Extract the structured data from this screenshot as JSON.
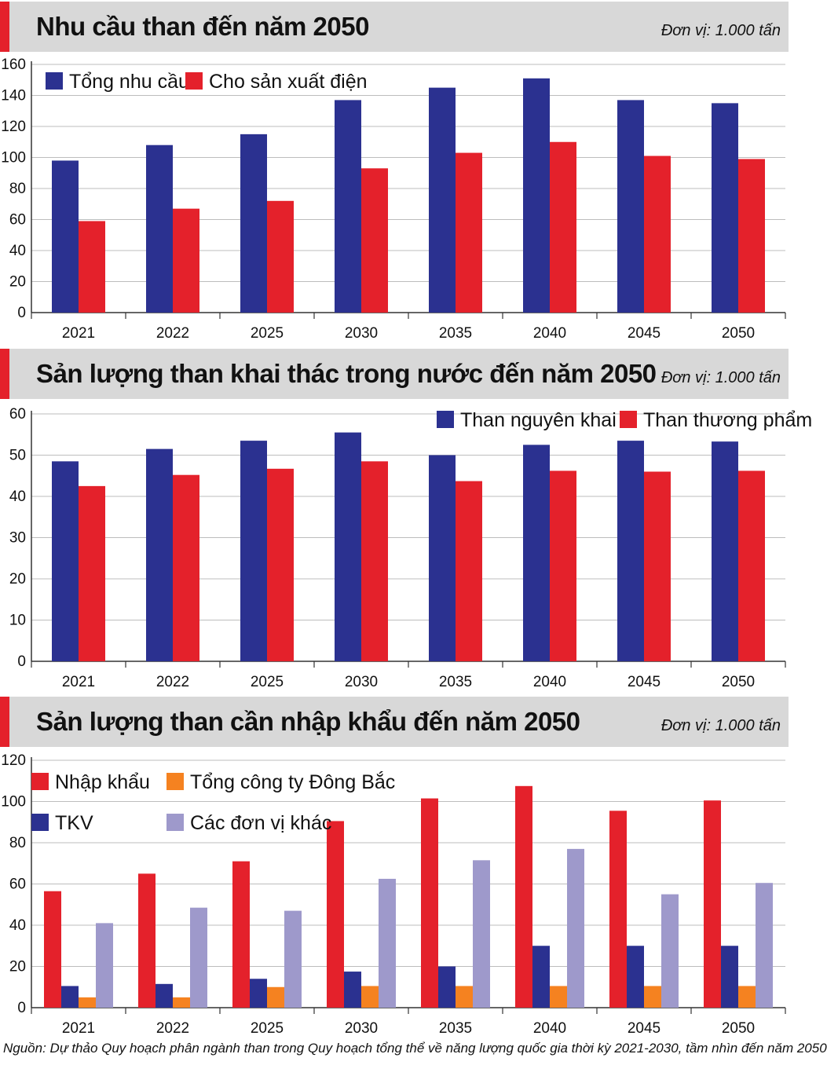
{
  "colors": {
    "blue": "#2b3190",
    "red": "#e4212b",
    "orange": "#f58220",
    "lavender": "#9e99cb",
    "accent": "#e4212b",
    "header_bg": "#d8d8d8"
  },
  "charts": [
    {
      "title": "Nhu cầu than đến năm 2050",
      "unit": "Đơn vị: 1.000 tấn"
    },
    {
      "title": "Sản lượng than khai thác trong nước đến năm 2050",
      "unit": "Đơn vị: 1.000 tấn"
    },
    {
      "title": "Sản lượng than cần nhập khẩu đến năm 2050",
      "unit": "Đơn vị: 1.000 tấn"
    }
  ],
  "source": "Nguồn: Dự thảo Quy hoạch phân ngành than trong Quy hoạch tổng thể về năng lượng quốc gia thời kỳ 2021-2030, tầm nhìn đến năm 2050",
  "chart_data": [
    {
      "type": "bar",
      "title": "Nhu cầu than đến năm 2050",
      "ylabel": "Đơn vị: 1.000 tấn",
      "categories": [
        "2021",
        "2022",
        "2025",
        "2030",
        "2035",
        "2040",
        "2045",
        "2050"
      ],
      "ylim": [
        0,
        160
      ],
      "yticks": [
        0,
        20,
        40,
        60,
        80,
        100,
        120,
        140,
        160
      ],
      "legend": "top-left",
      "series": [
        {
          "name": "Tổng nhu cầu",
          "color": "#2b3190",
          "values": [
            98,
            108,
            115,
            137,
            145,
            151,
            137,
            135
          ]
        },
        {
          "name": "Cho sản xuất điện",
          "color": "#e4212b",
          "values": [
            59,
            67,
            72,
            93,
            103,
            110,
            101,
            99
          ]
        }
      ]
    },
    {
      "type": "bar",
      "title": "Sản lượng than khai thác trong nước đến năm 2050",
      "ylabel": "Đơn vị: 1.000 tấn",
      "categories": [
        "2021",
        "2022",
        "2025",
        "2030",
        "2035",
        "2040",
        "2045",
        "2050"
      ],
      "ylim": [
        0,
        60
      ],
      "yticks": [
        0,
        10,
        20,
        30,
        40,
        50,
        60
      ],
      "legend": "top-right",
      "series": [
        {
          "name": "Than nguyên khai",
          "color": "#2b3190",
          "values": [
            48.5,
            51.5,
            53.5,
            55.5,
            50,
            52.5,
            53.5,
            53.3
          ]
        },
        {
          "name": "Than thương phẩm",
          "color": "#e4212b",
          "values": [
            42.5,
            45.2,
            46.7,
            48.5,
            43.7,
            46.2,
            46,
            46.2
          ]
        }
      ]
    },
    {
      "type": "bar",
      "title": "Sản lượng than cần nhập khẩu đến năm 2050",
      "ylabel": "Đơn vị: 1.000 tấn",
      "categories": [
        "2021",
        "2022",
        "2025",
        "2030",
        "2035",
        "2040",
        "2045",
        "2050"
      ],
      "ylim": [
        0,
        120
      ],
      "yticks": [
        0,
        20,
        40,
        60,
        80,
        100,
        120
      ],
      "legend": "top-left",
      "series": [
        {
          "name": "Nhập khẩu",
          "color": "#e4212b",
          "values": [
            56.5,
            65,
            71,
            90.5,
            101.5,
            107.5,
            95.5,
            100.5
          ]
        },
        {
          "name": "TKV",
          "color": "#2b3190",
          "values": [
            10.5,
            11.5,
            14,
            17.5,
            20,
            30,
            30,
            30
          ]
        },
        {
          "name": "Tổng công ty Đông Bắc",
          "color": "#f58220",
          "values": [
            5,
            5,
            10,
            10.5,
            10.5,
            10.5,
            10.5,
            10.5
          ]
        },
        {
          "name": "Các đơn vị khác",
          "color": "#9e99cb",
          "values": [
            41,
            48.5,
            47,
            62.5,
            71.5,
            77,
            55,
            60.5
          ]
        }
      ]
    }
  ]
}
